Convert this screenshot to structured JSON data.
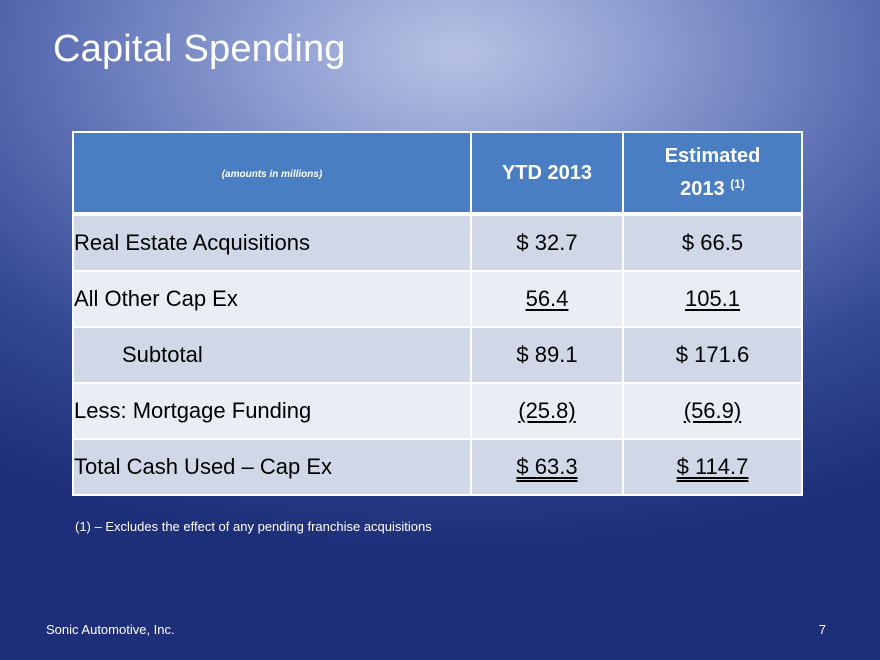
{
  "slide": {
    "title": "Capital Spending",
    "footnote": "(1) – Excludes the effect of any pending franchise acquisitions",
    "company": "Sonic Automotive, Inc.",
    "page_number": "7"
  },
  "table": {
    "header": {
      "note": "(amounts in millions)",
      "col1": "YTD 2013",
      "col2_line1": "Estimated",
      "col2_line2": "2013",
      "col2_footnote_ref": "(1)"
    },
    "rows": [
      {
        "label": "Real Estate Acquisitions",
        "ytd": "$ 32.7",
        "est": "$ 66.5"
      },
      {
        "label": "All Other Cap Ex",
        "ytd": "56.4",
        "est": "105.1"
      },
      {
        "label": "Subtotal",
        "ytd": "$ 89.1",
        "est": "$ 171.6"
      },
      {
        "label": "Less: Mortgage Funding",
        "ytd": "(25.8)",
        "est": "(56.9)"
      },
      {
        "label": "Total Cash Used – Cap Ex",
        "ytd": "$ 63.3",
        "est": "$ 114.7"
      }
    ]
  },
  "colors": {
    "header_bg": "#4a7ec2",
    "row_shade": "#d0d8e8",
    "row_light": "#e9edf4"
  }
}
